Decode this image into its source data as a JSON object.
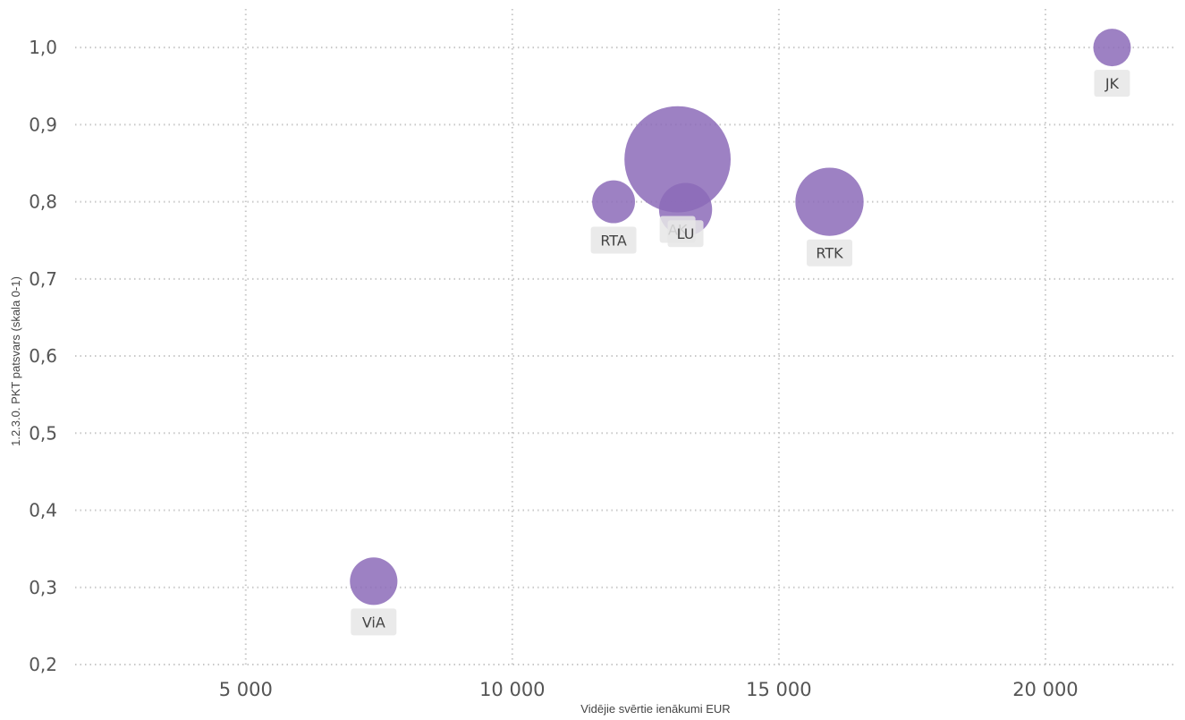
{
  "colors": {
    "bubble": "#8c6bb8",
    "grid": "#c8c8c8"
  },
  "chart_data": {
    "type": "scatter",
    "title": "",
    "xlabel": "Vidējie svērtie ienākumi EUR",
    "ylabel": "1.2.3.0. PKT patsvars (skala 0-1)",
    "xlim": [
      1800,
      22400
    ],
    "ylim": [
      0.2,
      1.05
    ],
    "x_ticks": [
      5000,
      10000,
      15000,
      20000
    ],
    "x_tick_labels": [
      "5 000",
      "10 000",
      "15 000",
      "20 000"
    ],
    "y_ticks": [
      0.2,
      0.3,
      0.4,
      0.5,
      0.6,
      0.7,
      0.8,
      0.9,
      1.0
    ],
    "y_tick_labels": [
      "0,2",
      "0,3",
      "0,4",
      "0,5",
      "0,6",
      "0,7",
      "0,8",
      "0,9",
      "1,0"
    ],
    "grid": true,
    "points": [
      {
        "label": "AK",
        "x": 13100,
        "y": 0.855,
        "size": 8
      },
      {
        "label": "LU",
        "x": 13250,
        "y": 0.79,
        "size": 2
      },
      {
        "label": "RTA",
        "x": 11900,
        "y": 0.8,
        "size": 1.3
      },
      {
        "label": "RTK",
        "x": 15950,
        "y": 0.8,
        "size": 3.3
      },
      {
        "label": "JK",
        "x": 21250,
        "y": 1.0,
        "size": 1
      },
      {
        "label": "ViA",
        "x": 7400,
        "y": 0.308,
        "size": 1.6
      }
    ]
  }
}
